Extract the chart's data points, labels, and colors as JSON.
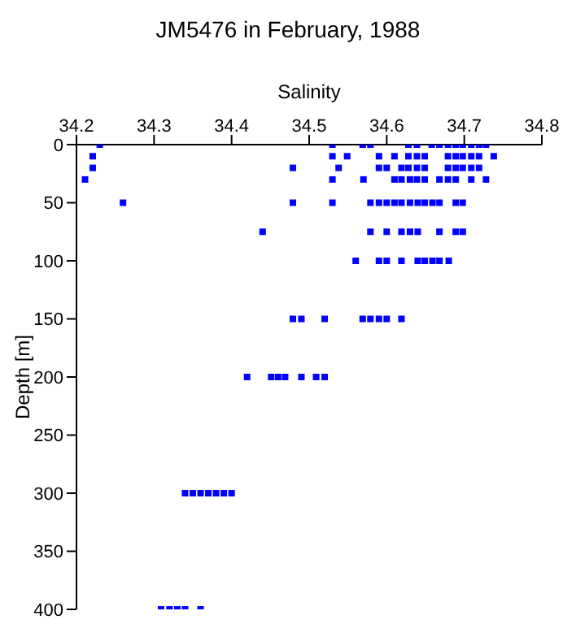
{
  "chart_data": {
    "type": "scatter",
    "title": "JM5476 in February, 1988",
    "xlabel": "Salinity",
    "ylabel": "Depth [m]",
    "xlim": [
      34.2,
      34.8
    ],
    "xticks": [
      34.2,
      34.3,
      34.4,
      34.5,
      34.6,
      34.7,
      34.8
    ],
    "ylim": [
      400,
      0
    ],
    "yticks": [
      0,
      50,
      100,
      150,
      200,
      250,
      300,
      350,
      400
    ],
    "grid": false,
    "legend": false,
    "marker": "square",
    "series": [
      {
        "color": "#0000ff",
        "x": [
          34.23,
          34.53,
          34.569,
          34.579,
          34.628,
          34.639,
          34.658,
          34.668,
          34.679,
          34.689,
          34.698,
          34.709,
          34.719,
          34.728,
          34.221,
          34.53,
          34.549,
          34.59,
          34.61,
          34.628,
          34.639,
          34.649,
          34.679,
          34.689,
          34.698,
          34.709,
          34.719,
          34.738,
          34.221,
          34.479,
          34.538,
          34.59,
          34.6,
          34.619,
          34.628,
          34.639,
          34.649,
          34.679,
          34.689,
          34.698,
          34.709,
          34.719,
          34.211,
          34.53,
          34.57,
          34.61,
          34.619,
          34.63,
          34.639,
          34.649,
          34.668,
          34.679,
          34.689,
          34.709,
          34.728,
          34.26,
          34.479,
          34.53,
          34.579,
          34.59,
          34.6,
          34.61,
          34.619,
          34.63,
          34.64,
          34.649,
          34.659,
          34.668,
          34.689,
          34.698,
          34.44,
          34.579,
          34.6,
          34.619,
          34.63,
          34.64,
          34.668,
          34.689,
          34.698,
          34.56,
          34.59,
          34.6,
          34.619,
          34.64,
          34.649,
          34.659,
          34.668,
          34.68,
          34.479,
          34.49,
          34.52,
          34.569,
          34.579,
          34.59,
          34.6,
          34.619,
          34.42,
          34.451,
          34.46,
          34.469,
          34.49,
          34.509,
          34.52,
          34.34,
          34.35,
          34.36,
          34.37,
          34.38,
          34.39,
          34.4,
          34.309,
          34.32,
          34.33,
          34.34,
          34.36
        ],
        "values": [
          0,
          0,
          0,
          0,
          0,
          0,
          0,
          0,
          0,
          0,
          0,
          0,
          0,
          0,
          10,
          10,
          10,
          10,
          10,
          10,
          10,
          10,
          10,
          10,
          10,
          10,
          10,
          10,
          20,
          20,
          20,
          20,
          20,
          20,
          20,
          20,
          20,
          20,
          20,
          20,
          20,
          20,
          30,
          30,
          30,
          30,
          30,
          30,
          30,
          30,
          30,
          30,
          30,
          30,
          30,
          50,
          50,
          50,
          50,
          50,
          50,
          50,
          50,
          50,
          50,
          50,
          50,
          50,
          50,
          50,
          75,
          75,
          75,
          75,
          75,
          75,
          75,
          75,
          75,
          100,
          100,
          100,
          100,
          100,
          100,
          100,
          100,
          100,
          150,
          150,
          150,
          150,
          150,
          150,
          150,
          150,
          200,
          200,
          200,
          200,
          200,
          200,
          200,
          300,
          300,
          300,
          300,
          300,
          300,
          300,
          400,
          400,
          400,
          400,
          400
        ]
      }
    ]
  }
}
